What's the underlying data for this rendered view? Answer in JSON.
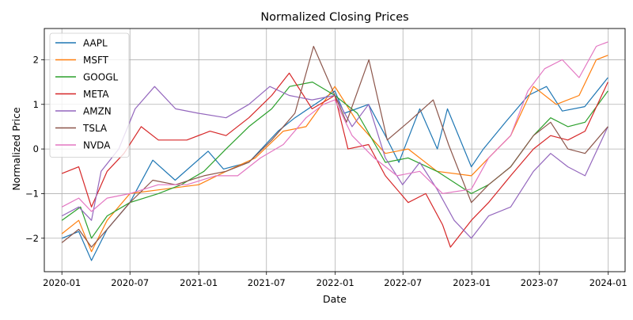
{
  "chart_data": {
    "type": "line",
    "title": "Normalized Closing Prices",
    "xlabel": "Date",
    "ylabel": "Normalized Price",
    "x_ticks": [
      "2020-01",
      "2020-07",
      "2021-01",
      "2021-07",
      "2022-01",
      "2022-07",
      "2023-01",
      "2023-07",
      "2024-01"
    ],
    "y_ticks": [
      "−2",
      "−1",
      "0",
      "1",
      "2"
    ],
    "xlim": [
      "2019-11-15",
      "2024-02-15"
    ],
    "ylim": [
      -2.75,
      2.7
    ],
    "grid": true,
    "legend_position": "upper-left",
    "series": [
      {
        "name": "AAPL",
        "color": "#1f77b4",
        "x": [
          "2020-01-01",
          "2020-02-15",
          "2020-03-20",
          "2020-05-01",
          "2020-07-01",
          "2020-08-31",
          "2020-10-30",
          "2021-01-26",
          "2021-03-08",
          "2021-05-15",
          "2021-08-01",
          "2021-09-15",
          "2021-12-31",
          "2022-01-25",
          "2022-03-31",
          "2022-05-15",
          "2022-06-20",
          "2022-08-15",
          "2022-10-01",
          "2022-10-28",
          "2022-12-31",
          "2023-02-01",
          "2023-04-01",
          "2023-06-01",
          "2023-07-20",
          "2023-08-31",
          "2023-10-30",
          "2023-12-31"
        ],
        "y": [
          -2.0,
          -1.85,
          -2.5,
          -1.8,
          -1.2,
          -0.25,
          -0.7,
          -0.05,
          -0.45,
          -0.3,
          0.4,
          0.7,
          1.3,
          0.8,
          1.0,
          0.3,
          -0.3,
          0.9,
          0.0,
          0.9,
          -0.4,
          0.0,
          0.6,
          1.2,
          1.4,
          0.85,
          0.95,
          1.6
        ]
      },
      {
        "name": "MSFT",
        "color": "#ff7f0e",
        "x": [
          "2020-01-01",
          "2020-02-15",
          "2020-03-20",
          "2020-05-01",
          "2020-07-01",
          "2020-09-30",
          "2021-01-01",
          "2021-03-15",
          "2021-06-01",
          "2021-08-15",
          "2021-10-15",
          "2021-12-31",
          "2022-03-01",
          "2022-05-15",
          "2022-07-15",
          "2022-09-30",
          "2022-12-31",
          "2023-02-15",
          "2023-04-15",
          "2023-06-15",
          "2023-08-15",
          "2023-10-15",
          "2023-11-30",
          "2023-12-31"
        ],
        "y": [
          -1.9,
          -1.6,
          -2.3,
          -1.6,
          -1.0,
          -0.9,
          -0.8,
          -0.5,
          -0.2,
          0.4,
          0.5,
          1.4,
          0.6,
          -0.1,
          0.0,
          -0.5,
          -0.6,
          -0.2,
          0.3,
          1.4,
          1.0,
          1.2,
          2.0,
          2.1
        ]
      },
      {
        "name": "GOOGL",
        "color": "#2ca02c",
        "x": [
          "2020-01-01",
          "2020-02-20",
          "2020-03-20",
          "2020-05-01",
          "2020-07-01",
          "2020-09-15",
          "2020-11-15",
          "2021-01-15",
          "2021-03-15",
          "2021-05-15",
          "2021-07-15",
          "2021-09-01",
          "2021-11-01",
          "2021-12-31",
          "2022-03-01",
          "2022-05-15",
          "2022-07-15",
          "2022-09-30",
          "2022-12-31",
          "2023-02-15",
          "2023-04-15",
          "2023-06-15",
          "2023-07-31",
          "2023-09-15",
          "2023-10-31",
          "2023-12-31"
        ],
        "y": [
          -1.6,
          -1.3,
          -2.0,
          -1.5,
          -1.2,
          -1.0,
          -0.8,
          -0.5,
          0.0,
          0.5,
          0.9,
          1.4,
          1.5,
          1.2,
          0.8,
          -0.3,
          -0.2,
          -0.5,
          -1.0,
          -0.8,
          -0.4,
          0.3,
          0.7,
          0.5,
          0.6,
          1.3
        ]
      },
      {
        "name": "META",
        "color": "#d62728",
        "x": [
          "2020-01-01",
          "2020-02-15",
          "2020-03-20",
          "2020-05-01",
          "2020-06-15",
          "2020-07-31",
          "2020-09-15",
          "2020-11-30",
          "2021-01-31",
          "2021-03-15",
          "2021-05-15",
          "2021-07-15",
          "2021-08-31",
          "2021-10-31",
          "2021-12-31",
          "2022-02-04",
          "2022-03-31",
          "2022-05-15",
          "2022-07-15",
          "2022-08-31",
          "2022-10-15",
          "2022-11-05",
          "2022-12-31",
          "2023-02-15",
          "2023-04-15",
          "2023-06-15",
          "2023-07-31",
          "2023-09-15",
          "2023-10-31",
          "2023-12-31"
        ],
        "y": [
          -0.55,
          -0.4,
          -1.3,
          -0.5,
          -0.1,
          0.5,
          0.2,
          0.2,
          0.4,
          0.3,
          0.7,
          1.2,
          1.7,
          0.9,
          1.2,
          0.0,
          0.1,
          -0.6,
          -1.2,
          -1.0,
          -1.7,
          -2.2,
          -1.6,
          -1.2,
          -0.6,
          0.0,
          0.3,
          0.2,
          0.4,
          1.5
        ]
      },
      {
        "name": "AMZN",
        "color": "#9467bd",
        "x": [
          "2020-01-01",
          "2020-02-15",
          "2020-03-20",
          "2020-04-15",
          "2020-06-01",
          "2020-07-15",
          "2020-09-05",
          "2020-10-31",
          "2020-12-31",
          "2021-03-15",
          "2021-05-15",
          "2021-07-10",
          "2021-08-31",
          "2021-10-31",
          "2021-12-31",
          "2022-02-15",
          "2022-03-31",
          "2022-05-15",
          "2022-06-30",
          "2022-08-15",
          "2022-09-30",
          "2022-11-15",
          "2022-12-31",
          "2023-02-15",
          "2023-04-15",
          "2023-06-15",
          "2023-07-31",
          "2023-09-15",
          "2023-10-31",
          "2023-12-31"
        ],
        "y": [
          -1.5,
          -1.3,
          -1.6,
          -0.5,
          0.0,
          0.9,
          1.4,
          0.9,
          0.8,
          0.7,
          1.0,
          1.4,
          1.2,
          1.1,
          1.2,
          0.5,
          1.0,
          -0.2,
          -0.8,
          -0.3,
          -0.9,
          -1.6,
          -2.0,
          -1.5,
          -1.3,
          -0.5,
          -0.1,
          -0.4,
          -0.6,
          0.5
        ]
      },
      {
        "name": "TSLA",
        "color": "#8c564b",
        "x": [
          "2020-01-01",
          "2020-02-15",
          "2020-03-20",
          "2020-05-01",
          "2020-07-01",
          "2020-08-31",
          "2020-10-31",
          "2021-01-15",
          "2021-03-15",
          "2021-05-15",
          "2021-07-15",
          "2021-09-15",
          "2021-11-04",
          "2021-12-31",
          "2022-01-31",
          "2022-04-01",
          "2022-05-20",
          "2022-07-15",
          "2022-09-20",
          "2022-10-31",
          "2022-12-31",
          "2023-02-15",
          "2023-04-15",
          "2023-06-15",
          "2023-07-31",
          "2023-09-15",
          "2023-10-31",
          "2023-12-31"
        ],
        "y": [
          -2.1,
          -1.8,
          -2.2,
          -1.8,
          -1.2,
          -0.7,
          -0.8,
          -0.6,
          -0.5,
          -0.3,
          0.2,
          0.8,
          2.3,
          1.2,
          0.6,
          2.0,
          0.2,
          0.6,
          1.1,
          0.1,
          -1.2,
          -0.8,
          -0.4,
          0.3,
          0.6,
          0.0,
          -0.1,
          0.5
        ]
      },
      {
        "name": "NVDA",
        "color": "#e377c2",
        "x": [
          "2020-01-01",
          "2020-02-15",
          "2020-03-20",
          "2020-05-01",
          "2020-07-01",
          "2020-09-15",
          "2020-11-30",
          "2021-02-15",
          "2021-04-15",
          "2021-06-15",
          "2021-08-15",
          "2021-10-15",
          "2021-11-30",
          "2021-12-31",
          "2022-02-15",
          "2022-04-15",
          "2022-06-15",
          "2022-08-15",
          "2022-10-15",
          "2022-12-31",
          "2023-02-15",
          "2023-04-15",
          "2023-05-31",
          "2023-07-15",
          "2023-08-31",
          "2023-10-15",
          "2023-11-30",
          "2023-12-31"
        ],
        "y": [
          -1.3,
          -1.1,
          -1.4,
          -1.1,
          -1.0,
          -0.8,
          -0.8,
          -0.6,
          -0.6,
          -0.2,
          0.1,
          0.7,
          1.0,
          1.1,
          0.3,
          -0.2,
          -0.6,
          -0.5,
          -1.0,
          -0.9,
          -0.2,
          0.3,
          1.3,
          1.8,
          2.0,
          1.6,
          2.3,
          2.4
        ]
      }
    ]
  }
}
